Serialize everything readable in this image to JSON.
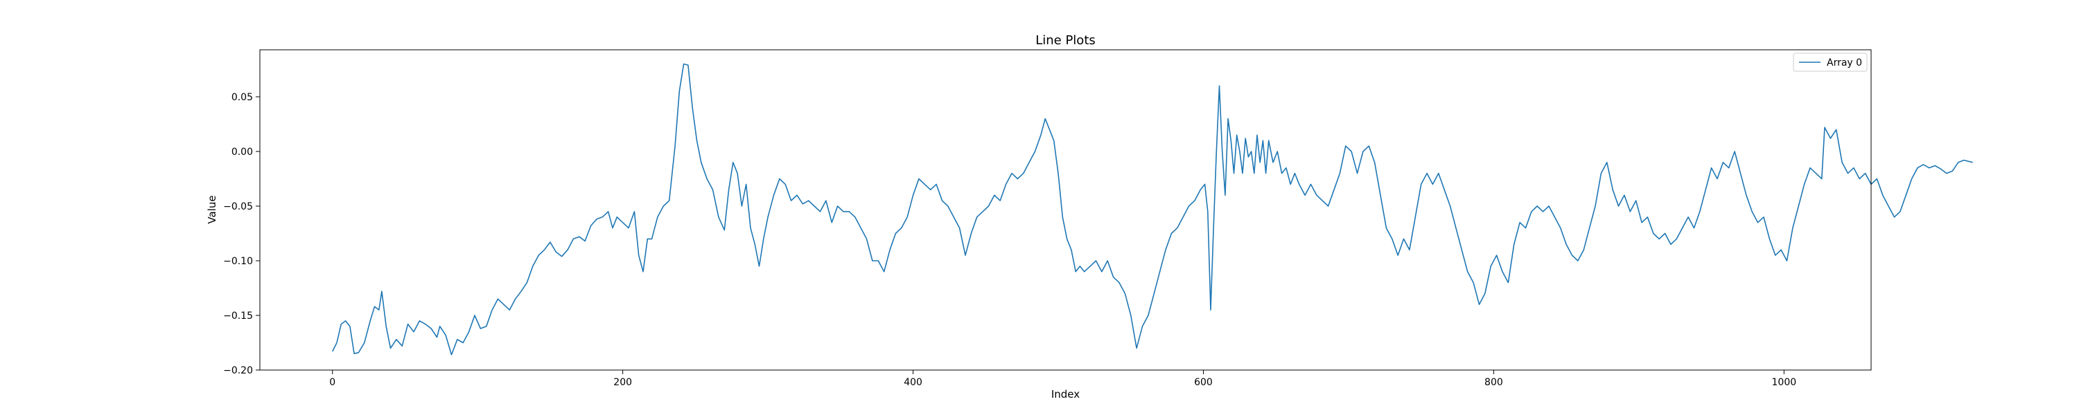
{
  "chart_data": {
    "type": "line",
    "title": "Line Plots",
    "xlabel": "Index",
    "ylabel": "Value",
    "xlim": [
      -50,
      1060
    ],
    "ylim": [
      -0.2,
      0.093
    ],
    "xticks": [
      0,
      200,
      400,
      600,
      800,
      1000
    ],
    "yticks": [
      -0.2,
      -0.15,
      -0.1,
      -0.05,
      0.0,
      0.05
    ],
    "xtick_labels": [
      "0",
      "200",
      "400",
      "600",
      "800",
      "1000"
    ],
    "ytick_labels": [
      "−0.20",
      "−0.15",
      "−0.10",
      "−0.05",
      "0.00",
      "0.05"
    ],
    "grid": false,
    "legend_position": "top-right",
    "series": [
      {
        "name": "Array 0",
        "color": "#1f77b4",
        "keypoints": [
          [
            0,
            -0.183
          ],
          [
            3,
            -0.175
          ],
          [
            6,
            -0.158
          ],
          [
            9,
            -0.155
          ],
          [
            12,
            -0.16
          ],
          [
            15,
            -0.185
          ],
          [
            18,
            -0.184
          ],
          [
            22,
            -0.175
          ],
          [
            26,
            -0.155
          ],
          [
            29,
            -0.142
          ],
          [
            32,
            -0.145
          ],
          [
            34,
            -0.128
          ],
          [
            37,
            -0.16
          ],
          [
            40,
            -0.18
          ],
          [
            44,
            -0.172
          ],
          [
            48,
            -0.178
          ],
          [
            52,
            -0.158
          ],
          [
            56,
            -0.165
          ],
          [
            60,
            -0.155
          ],
          [
            64,
            -0.158
          ],
          [
            68,
            -0.162
          ],
          [
            72,
            -0.17
          ],
          [
            74,
            -0.16
          ],
          [
            78,
            -0.168
          ],
          [
            82,
            -0.186
          ],
          [
            86,
            -0.172
          ],
          [
            90,
            -0.175
          ],
          [
            94,
            -0.165
          ],
          [
            98,
            -0.15
          ],
          [
            102,
            -0.162
          ],
          [
            106,
            -0.16
          ],
          [
            110,
            -0.145
          ],
          [
            114,
            -0.135
          ],
          [
            118,
            -0.14
          ],
          [
            122,
            -0.145
          ],
          [
            126,
            -0.135
          ],
          [
            130,
            -0.128
          ],
          [
            134,
            -0.12
          ],
          [
            138,
            -0.105
          ],
          [
            142,
            -0.095
          ],
          [
            146,
            -0.09
          ],
          [
            150,
            -0.083
          ],
          [
            154,
            -0.092
          ],
          [
            158,
            -0.096
          ],
          [
            162,
            -0.09
          ],
          [
            166,
            -0.08
          ],
          [
            170,
            -0.078
          ],
          [
            174,
            -0.082
          ],
          [
            178,
            -0.068
          ],
          [
            182,
            -0.062
          ],
          [
            186,
            -0.06
          ],
          [
            190,
            -0.055
          ],
          [
            193,
            -0.07
          ],
          [
            196,
            -0.06
          ],
          [
            200,
            -0.065
          ],
          [
            204,
            -0.07
          ],
          [
            208,
            -0.055
          ],
          [
            211,
            -0.095
          ],
          [
            214,
            -0.11
          ],
          [
            217,
            -0.08
          ],
          [
            220,
            -0.08
          ],
          [
            224,
            -0.06
          ],
          [
            228,
            -0.05
          ],
          [
            232,
            -0.045
          ],
          [
            236,
            0.005
          ],
          [
            239,
            0.055
          ],
          [
            242,
            0.08
          ],
          [
            245,
            0.079
          ],
          [
            248,
            0.04
          ],
          [
            251,
            0.01
          ],
          [
            254,
            -0.01
          ],
          [
            258,
            -0.025
          ],
          [
            262,
            -0.035
          ],
          [
            266,
            -0.06
          ],
          [
            270,
            -0.072
          ],
          [
            273,
            -0.035
          ],
          [
            276,
            -0.01
          ],
          [
            279,
            -0.02
          ],
          [
            282,
            -0.05
          ],
          [
            285,
            -0.03
          ],
          [
            288,
            -0.07
          ],
          [
            291,
            -0.085
          ],
          [
            294,
            -0.105
          ],
          [
            297,
            -0.08
          ],
          [
            300,
            -0.06
          ],
          [
            304,
            -0.04
          ],
          [
            308,
            -0.025
          ],
          [
            312,
            -0.03
          ],
          [
            316,
            -0.045
          ],
          [
            320,
            -0.04
          ],
          [
            324,
            -0.048
          ],
          [
            328,
            -0.045
          ],
          [
            332,
            -0.05
          ],
          [
            336,
            -0.055
          ],
          [
            340,
            -0.045
          ],
          [
            344,
            -0.065
          ],
          [
            348,
            -0.05
          ],
          [
            352,
            -0.055
          ],
          [
            356,
            -0.055
          ],
          [
            360,
            -0.06
          ],
          [
            364,
            -0.07
          ],
          [
            368,
            -0.08
          ],
          [
            372,
            -0.1
          ],
          [
            376,
            -0.1
          ],
          [
            380,
            -0.11
          ],
          [
            384,
            -0.09
          ],
          [
            388,
            -0.075
          ],
          [
            392,
            -0.07
          ],
          [
            396,
            -0.06
          ],
          [
            400,
            -0.04
          ],
          [
            404,
            -0.025
          ],
          [
            408,
            -0.03
          ],
          [
            412,
            -0.035
          ],
          [
            416,
            -0.03
          ],
          [
            420,
            -0.045
          ],
          [
            424,
            -0.05
          ],
          [
            428,
            -0.06
          ],
          [
            432,
            -0.07
          ],
          [
            436,
            -0.095
          ],
          [
            440,
            -0.075
          ],
          [
            444,
            -0.06
          ],
          [
            448,
            -0.055
          ],
          [
            452,
            -0.05
          ],
          [
            456,
            -0.04
          ],
          [
            460,
            -0.045
          ],
          [
            464,
            -0.03
          ],
          [
            468,
            -0.02
          ],
          [
            472,
            -0.025
          ],
          [
            476,
            -0.02
          ],
          [
            480,
            -0.01
          ],
          [
            484,
            0.0
          ],
          [
            488,
            0.015
          ],
          [
            491,
            0.03
          ],
          [
            494,
            0.02
          ],
          [
            497,
            0.01
          ],
          [
            500,
            -0.02
          ],
          [
            503,
            -0.06
          ],
          [
            506,
            -0.08
          ],
          [
            509,
            -0.09
          ],
          [
            512,
            -0.11
          ],
          [
            515,
            -0.105
          ],
          [
            518,
            -0.11
          ],
          [
            522,
            -0.105
          ],
          [
            526,
            -0.1
          ],
          [
            530,
            -0.11
          ],
          [
            534,
            -0.1
          ],
          [
            538,
            -0.115
          ],
          [
            542,
            -0.12
          ],
          [
            546,
            -0.13
          ],
          [
            550,
            -0.15
          ],
          [
            554,
            -0.18
          ],
          [
            558,
            -0.16
          ],
          [
            562,
            -0.15
          ],
          [
            566,
            -0.13
          ],
          [
            570,
            -0.11
          ],
          [
            574,
            -0.09
          ],
          [
            578,
            -0.075
          ],
          [
            582,
            -0.07
          ],
          [
            586,
            -0.06
          ],
          [
            590,
            -0.05
          ],
          [
            594,
            -0.045
          ],
          [
            598,
            -0.035
          ],
          [
            601,
            -0.03
          ],
          [
            603,
            -0.055
          ],
          [
            605,
            -0.145
          ],
          [
            607,
            -0.07
          ],
          [
            609,
            0.0
          ],
          [
            611,
            0.06
          ],
          [
            613,
            0.0
          ],
          [
            615,
            -0.04
          ],
          [
            617,
            0.03
          ],
          [
            619,
            0.01
          ],
          [
            621,
            -0.02
          ],
          [
            623,
            0.015
          ],
          [
            625,
            0.0
          ],
          [
            627,
            -0.02
          ],
          [
            629,
            0.012
          ],
          [
            631,
            -0.005
          ],
          [
            633,
            0.0
          ],
          [
            635,
            -0.02
          ],
          [
            637,
            0.015
          ],
          [
            639,
            -0.01
          ],
          [
            641,
            0.01
          ],
          [
            643,
            -0.02
          ],
          [
            645,
            0.01
          ],
          [
            648,
            -0.01
          ],
          [
            651,
            0.0
          ],
          [
            654,
            -0.02
          ],
          [
            657,
            -0.015
          ],
          [
            660,
            -0.03
          ],
          [
            663,
            -0.02
          ],
          [
            666,
            -0.03
          ],
          [
            670,
            -0.04
          ],
          [
            674,
            -0.03
          ],
          [
            678,
            -0.04
          ],
          [
            682,
            -0.045
          ],
          [
            686,
            -0.05
          ],
          [
            690,
            -0.035
          ],
          [
            694,
            -0.02
          ],
          [
            698,
            0.005
          ],
          [
            702,
            0.0
          ],
          [
            706,
            -0.02
          ],
          [
            710,
            0.0
          ],
          [
            714,
            0.005
          ],
          [
            718,
            -0.01
          ],
          [
            722,
            -0.04
          ],
          [
            726,
            -0.07
          ],
          [
            730,
            -0.08
          ],
          [
            734,
            -0.095
          ],
          [
            738,
            -0.08
          ],
          [
            742,
            -0.09
          ],
          [
            746,
            -0.06
          ],
          [
            750,
            -0.03
          ],
          [
            754,
            -0.02
          ],
          [
            758,
            -0.03
          ],
          [
            762,
            -0.02
          ],
          [
            766,
            -0.035
          ],
          [
            770,
            -0.05
          ],
          [
            774,
            -0.07
          ],
          [
            778,
            -0.09
          ],
          [
            782,
            -0.11
          ],
          [
            786,
            -0.12
          ],
          [
            790,
            -0.14
          ],
          [
            794,
            -0.13
          ],
          [
            798,
            -0.105
          ],
          [
            802,
            -0.095
          ],
          [
            806,
            -0.11
          ],
          [
            810,
            -0.12
          ],
          [
            814,
            -0.085
          ],
          [
            818,
            -0.065
          ],
          [
            822,
            -0.07
          ],
          [
            826,
            -0.055
          ],
          [
            830,
            -0.05
          ],
          [
            834,
            -0.055
          ],
          [
            838,
            -0.05
          ],
          [
            842,
            -0.06
          ],
          [
            846,
            -0.07
          ],
          [
            850,
            -0.085
          ],
          [
            854,
            -0.095
          ],
          [
            858,
            -0.1
          ],
          [
            862,
            -0.09
          ],
          [
            866,
            -0.07
          ],
          [
            870,
            -0.05
          ],
          [
            874,
            -0.02
          ],
          [
            878,
            -0.01
          ],
          [
            882,
            -0.035
          ],
          [
            886,
            -0.05
          ],
          [
            890,
            -0.04
          ],
          [
            894,
            -0.055
          ],
          [
            898,
            -0.045
          ],
          [
            902,
            -0.065
          ],
          [
            906,
            -0.06
          ],
          [
            910,
            -0.075
          ],
          [
            914,
            -0.08
          ],
          [
            918,
            -0.075
          ],
          [
            922,
            -0.085
          ],
          [
            926,
            -0.08
          ],
          [
            930,
            -0.07
          ],
          [
            934,
            -0.06
          ],
          [
            938,
            -0.07
          ],
          [
            942,
            -0.055
          ],
          [
            946,
            -0.035
          ],
          [
            950,
            -0.015
          ],
          [
            954,
            -0.025
          ],
          [
            958,
            -0.01
          ],
          [
            962,
            -0.015
          ],
          [
            966,
            0.0
          ],
          [
            970,
            -0.02
          ],
          [
            974,
            -0.04
          ],
          [
            978,
            -0.055
          ],
          [
            982,
            -0.065
          ],
          [
            986,
            -0.06
          ],
          [
            990,
            -0.08
          ],
          [
            994,
            -0.095
          ],
          [
            998,
            -0.09
          ],
          [
            1002,
            -0.1
          ],
          [
            1006,
            -0.07
          ],
          [
            1010,
            -0.05
          ],
          [
            1014,
            -0.03
          ],
          [
            1018,
            -0.015
          ],
          [
            1022,
            -0.02
          ],
          [
            1026,
            -0.025
          ],
          [
            1028,
            0.022
          ],
          [
            1032,
            0.012
          ],
          [
            1036,
            0.02
          ],
          [
            1040,
            -0.01
          ],
          [
            1044,
            -0.02
          ],
          [
            1048,
            -0.015
          ],
          [
            1052,
            -0.025
          ],
          [
            1056,
            -0.02
          ],
          [
            1060,
            -0.03
          ],
          [
            1064,
            -0.025
          ],
          [
            1068,
            -0.04
          ],
          [
            1072,
            -0.05
          ],
          [
            1076,
            -0.06
          ],
          [
            1080,
            -0.055
          ],
          [
            1084,
            -0.04
          ],
          [
            1088,
            -0.025
          ],
          [
            1092,
            -0.015
          ],
          [
            1096,
            -0.012
          ],
          [
            1100,
            -0.015
          ],
          [
            1104,
            -0.013
          ],
          [
            1108,
            -0.016
          ],
          [
            1112,
            -0.02
          ],
          [
            1116,
            -0.018
          ],
          [
            1120,
            -0.01
          ],
          [
            1124,
            -0.008
          ],
          [
            1130,
            -0.01
          ]
        ]
      }
    ]
  }
}
